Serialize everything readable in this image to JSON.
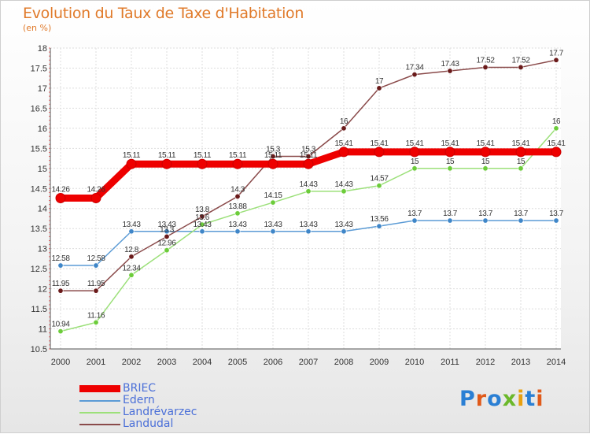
{
  "header": {
    "title": "Evolution du Taux de Taxe d'Habitation",
    "subtitle": "(en %)"
  },
  "logo": {
    "text": "Proxiti",
    "letter_colors": [
      "#2a7fd4",
      "#e05a1a",
      "#2a7fd4",
      "#6bb82a",
      "#e8a010",
      "#2a7fd4",
      "#e05a1a"
    ]
  },
  "chart_data": {
    "type": "line",
    "title": "Evolution du Taux de Taxe d'Habitation",
    "subtitle": "(en %)",
    "xlabel": "",
    "ylabel": "",
    "x": [
      "2000",
      "2001",
      "2002",
      "2003",
      "2004",
      "2005",
      "2006",
      "2007",
      "2008",
      "2009",
      "2010",
      "2011",
      "2012",
      "2013",
      "2014"
    ],
    "ylim": [
      10.5,
      18
    ],
    "yticks": [
      "10.5",
      "11",
      "11.5",
      "12",
      "12.5",
      "13",
      "13.5",
      "14",
      "14.5",
      "15",
      "15.5",
      "16",
      "16.5",
      "17",
      "17.5",
      "18"
    ],
    "grid": true,
    "legend_position": "bottom-left",
    "series": [
      {
        "name": "BRIEC",
        "color": "#ee0000",
        "emphasis": true,
        "values": [
          14.26,
          14.26,
          15.11,
          15.11,
          15.11,
          15.11,
          15.11,
          15.11,
          15.41,
          15.41,
          15.41,
          15.41,
          15.41,
          15.41,
          15.41
        ],
        "labels": [
          "14.26",
          "14.26",
          "15.11",
          "15.11",
          "15.11",
          "15.11",
          "15.11",
          "15.11",
          "15.41",
          "15.41",
          "15.41",
          "15.41",
          "15.41",
          "15.41",
          "15.41"
        ]
      },
      {
        "name": "Edern",
        "color": "#5b9bd5",
        "marker": "#3f86c8",
        "values": [
          12.58,
          12.58,
          13.43,
          13.43,
          13.43,
          13.43,
          13.43,
          13.43,
          13.43,
          13.56,
          13.7,
          13.7,
          13.7,
          13.7,
          13.7
        ],
        "labels": [
          "12.58",
          "12.58",
          "13.43",
          "13.43",
          "13.43",
          "13.43",
          "13.43",
          "13.43",
          "13.43",
          "13.56",
          "13.7",
          "13.7",
          "13.7",
          "13.7",
          "13.7"
        ]
      },
      {
        "name": "Landrévarzec",
        "color": "#9ce07a",
        "marker": "#6ccc3a",
        "values": [
          10.94,
          11.16,
          12.34,
          12.96,
          13.6,
          13.88,
          14.15,
          14.43,
          14.43,
          14.57,
          15,
          15,
          15,
          15,
          16
        ],
        "labels": [
          "10.94",
          "11.16",
          "12.34",
          "12.96",
          "13.6",
          "13.88",
          "14.15",
          "14.43",
          "14.43",
          "14.57",
          "15",
          "15",
          "15",
          "15",
          "16"
        ]
      },
      {
        "name": "Landudal",
        "color": "#8a4a4a",
        "marker": "#6a1a1a",
        "values": [
          11.95,
          11.95,
          12.8,
          13.3,
          13.8,
          14.3,
          15.3,
          15.3,
          16,
          17,
          17.34,
          17.43,
          17.52,
          17.52,
          17.7
        ],
        "labels": [
          "11.95",
          "11.95",
          "12.8",
          "13.3",
          "13.8",
          "14.3",
          "15.3",
          "15.3",
          "16",
          "17",
          "17.34",
          "17.43",
          "17.52",
          "17.52",
          "17.7"
        ]
      }
    ]
  }
}
